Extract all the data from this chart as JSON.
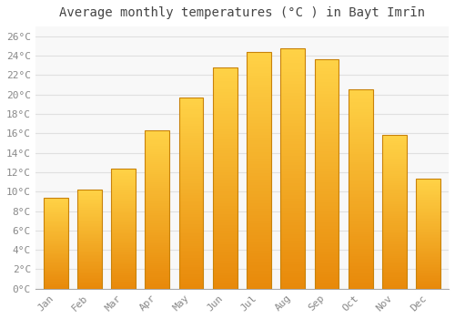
{
  "title": "Average monthly temperatures (°C ) in Bayt Imrīn",
  "months": [
    "Jan",
    "Feb",
    "Mar",
    "Apr",
    "May",
    "Jun",
    "Jul",
    "Aug",
    "Sep",
    "Oct",
    "Nov",
    "Dec"
  ],
  "values": [
    9.4,
    10.2,
    12.4,
    16.3,
    19.7,
    22.8,
    24.4,
    24.8,
    23.6,
    20.5,
    15.8,
    11.3
  ],
  "bar_color_bottom": "#E8890A",
  "bar_color_top": "#FFD347",
  "bar_border_color": "#C8820A",
  "ylim": [
    0,
    27
  ],
  "yticks": [
    0,
    2,
    4,
    6,
    8,
    10,
    12,
    14,
    16,
    18,
    20,
    22,
    24,
    26
  ],
  "ytick_labels": [
    "0°C",
    "2°C",
    "4°C",
    "6°C",
    "8°C",
    "10°C",
    "12°C",
    "14°C",
    "16°C",
    "18°C",
    "20°C",
    "22°C",
    "24°C",
    "26°C"
  ],
  "background_color": "#ffffff",
  "plot_bg_color": "#f8f8f8",
  "grid_color": "#e0e0e0",
  "title_fontsize": 10,
  "tick_fontsize": 8,
  "bar_width": 0.72
}
